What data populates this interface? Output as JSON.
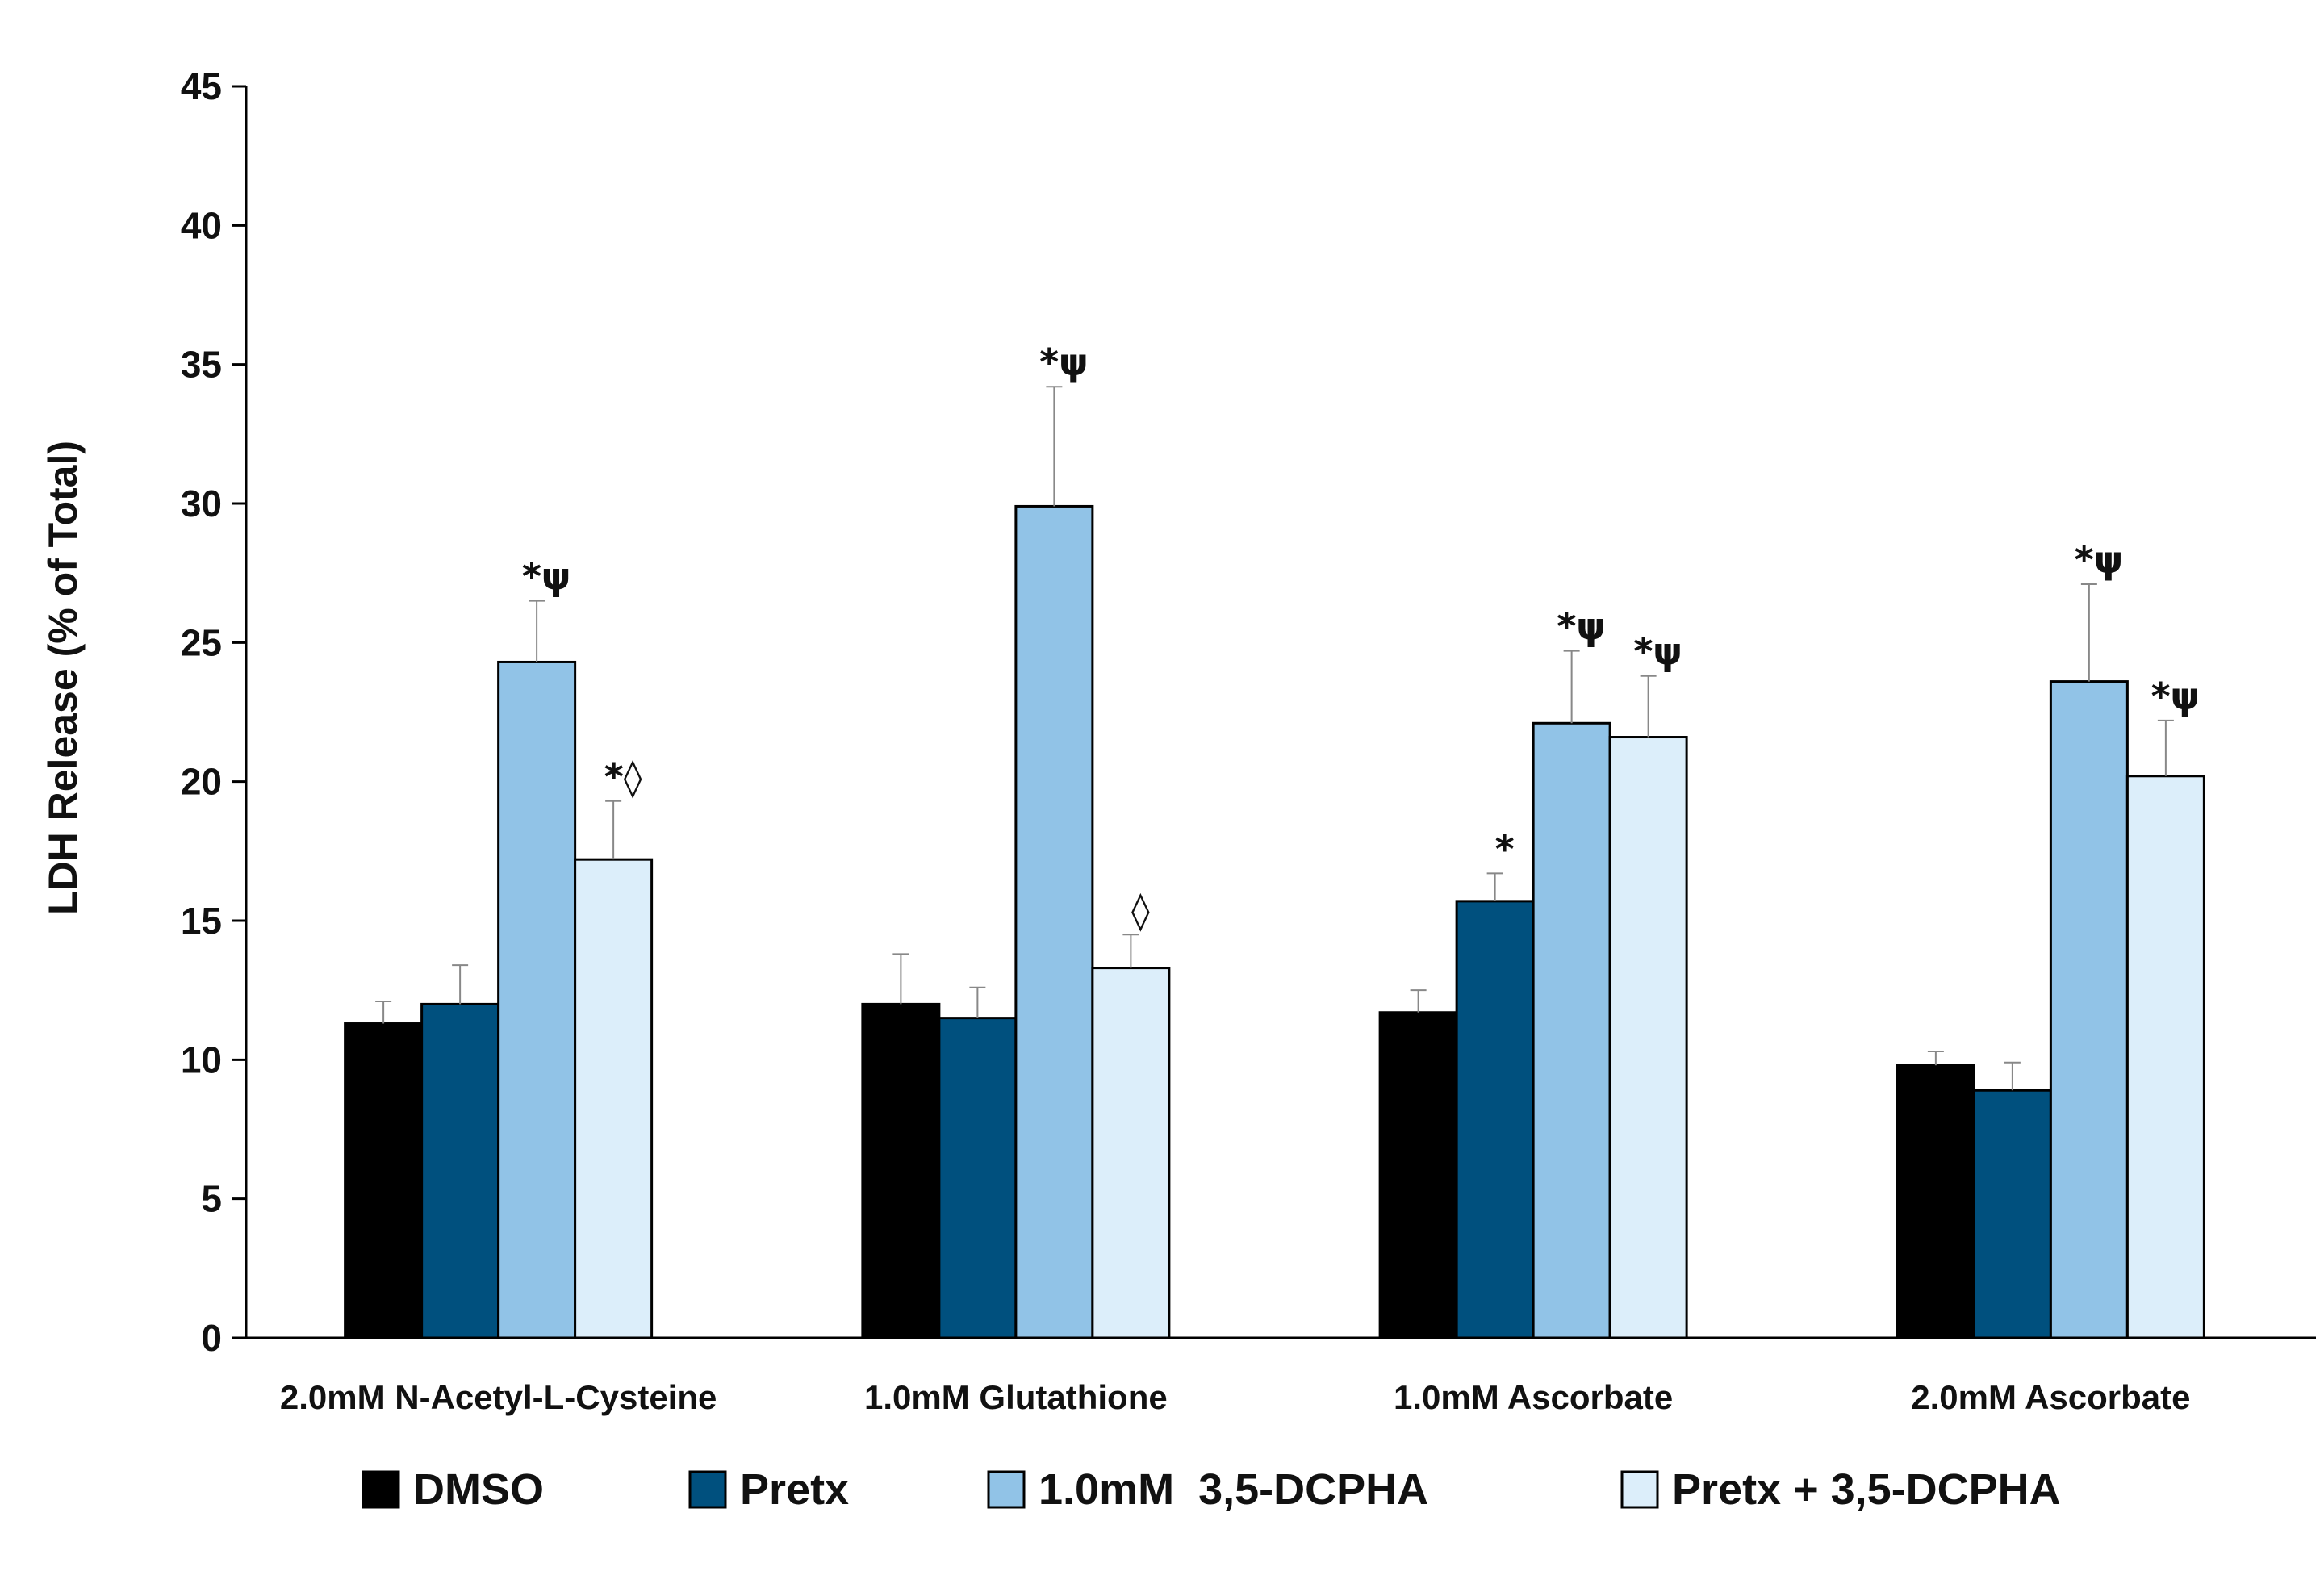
{
  "chart_data": {
    "type": "bar",
    "title": "",
    "xlabel": "",
    "ylabel": "LDH Release (% of Total)",
    "ylim": [
      0,
      45
    ],
    "yticks": [
      0,
      5,
      10,
      15,
      20,
      25,
      30,
      35,
      40,
      45
    ],
    "grid": false,
    "legend_position": "bottom",
    "categories": [
      "2.0mM N-Acetyl-L-Cysteine",
      "1.0mM Glutathione",
      "1.0mM Ascorbate",
      "2.0mM Ascorbate"
    ],
    "series": [
      {
        "name": "DMSO",
        "color": "#000000",
        "values": [
          11.3,
          12.0,
          11.7,
          9.8
        ],
        "errors": [
          0.8,
          1.8,
          0.8,
          0.5
        ],
        "annotations": [
          "",
          "",
          "",
          ""
        ]
      },
      {
        "name": "Pretx",
        "color": "#00507e",
        "values": [
          12.0,
          11.5,
          15.7,
          8.9
        ],
        "errors": [
          1.4,
          1.1,
          1.0,
          1.0
        ],
        "annotations": [
          "",
          "",
          "*",
          ""
        ]
      },
      {
        "name": "1.0mM  3,5-DCPHA",
        "color": "#91c3e7",
        "values": [
          24.3,
          29.9,
          22.1,
          23.6
        ],
        "errors": [
          2.2,
          4.3,
          2.6,
          3.5
        ],
        "annotations": [
          "*ψ",
          "*ψ",
          "*ψ",
          "*ψ"
        ]
      },
      {
        "name": "Pretx + 3,5-DCPHA",
        "color": "#dceefa",
        "values": [
          17.2,
          13.3,
          21.6,
          20.2
        ],
        "errors": [
          2.1,
          1.2,
          2.2,
          2.0
        ],
        "annotations": [
          "*◊",
          "◊",
          "*ψ",
          "*ψ"
        ]
      }
    ]
  }
}
